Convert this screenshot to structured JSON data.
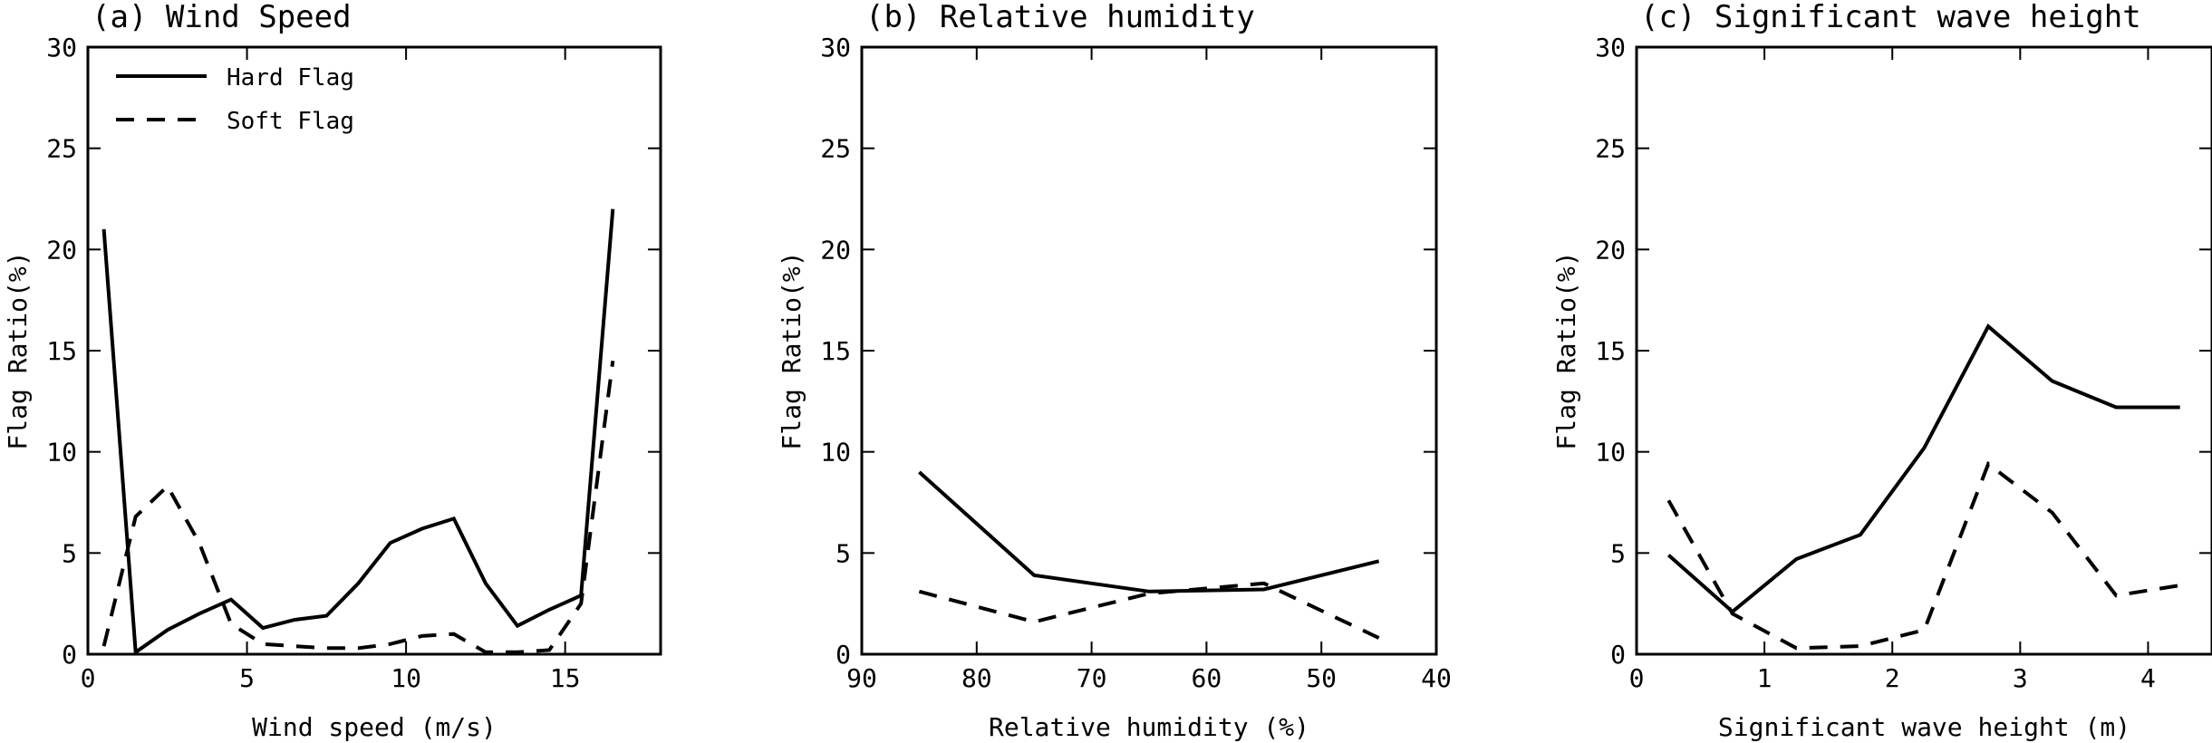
{
  "chart_data": [
    {
      "type": "line",
      "title": "(a) Wind Speed",
      "xlabel": "Wind speed (m/s)",
      "ylabel": "Flag Ratio(%)",
      "xlim": [
        0,
        18
      ],
      "ylim": [
        0,
        30
      ],
      "xticks": [
        0,
        5,
        10,
        15
      ],
      "yticks": [
        0,
        5,
        10,
        15,
        20,
        25,
        30
      ],
      "legend": {
        "position": "top-left",
        "entries": [
          "Hard Flag",
          "Soft Flag"
        ]
      },
      "series": [
        {
          "name": "Hard Flag",
          "style": "solid",
          "x": [
            0.5,
            1.5,
            2.5,
            3.5,
            4.5,
            5.5,
            6.5,
            7.5,
            8.5,
            9.5,
            10.5,
            11.5,
            12.5,
            13.5,
            14.5,
            15.5,
            16.5
          ],
          "y": [
            21,
            0.1,
            1.2,
            2.0,
            2.7,
            1.3,
            1.7,
            1.9,
            3.5,
            5.5,
            6.2,
            6.7,
            3.5,
            1.4,
            2.2,
            2.9,
            22
          ]
        },
        {
          "name": "Soft Flag",
          "style": "dashed",
          "x": [
            0.5,
            1.5,
            2.5,
            3.5,
            4.5,
            5.5,
            6.5,
            7.5,
            8.5,
            9.5,
            10.5,
            11.5,
            12.5,
            13.5,
            14.5,
            15.5,
            16.5
          ],
          "y": [
            0.4,
            6.8,
            8.3,
            5.5,
            1.5,
            0.5,
            0.4,
            0.3,
            0.3,
            0.5,
            0.9,
            1.0,
            0.1,
            0.1,
            0.2,
            2.5,
            14.5
          ]
        }
      ]
    },
    {
      "type": "line",
      "title": "(b) Relative humidity",
      "xlabel": "Relative humidity (%)",
      "ylabel": "Flag Ratio(%)",
      "xlim": [
        90,
        40
      ],
      "ylim": [
        0,
        30
      ],
      "xticks": [
        90,
        80,
        70,
        60,
        50,
        40
      ],
      "yticks": [
        0,
        5,
        10,
        15,
        20,
        25,
        30
      ],
      "series": [
        {
          "name": "Hard Flag",
          "style": "solid",
          "x": [
            85,
            75,
            65,
            55,
            45
          ],
          "y": [
            9.0,
            3.9,
            3.1,
            3.2,
            4.6
          ]
        },
        {
          "name": "Soft Flag",
          "style": "dashed",
          "x": [
            85,
            75,
            65,
            55,
            45
          ],
          "y": [
            3.1,
            1.6,
            3.0,
            3.5,
            0.8
          ]
        }
      ]
    },
    {
      "type": "line",
      "title": "(c) Significant wave height",
      "xlabel": "Significant wave height (m)",
      "ylabel": "Flag Ratio(%)",
      "xlim": [
        0,
        4.5
      ],
      "ylim": [
        0,
        30
      ],
      "xticks": [
        0,
        1,
        2,
        3,
        4
      ],
      "yticks": [
        0,
        5,
        10,
        15,
        20,
        25,
        30
      ],
      "series": [
        {
          "name": "Hard Flag",
          "style": "solid",
          "x": [
            0.25,
            0.75,
            1.25,
            1.75,
            2.25,
            2.75,
            3.25,
            3.75,
            4.25
          ],
          "y": [
            4.9,
            2.1,
            4.7,
            5.9,
            10.2,
            16.2,
            13.5,
            12.2,
            12.2
          ]
        },
        {
          "name": "Soft Flag",
          "style": "dashed",
          "x": [
            0.25,
            0.75,
            1.25,
            1.75,
            2.25,
            2.75,
            3.25,
            3.75,
            4.25
          ],
          "y": [
            7.6,
            2.0,
            0.3,
            0.4,
            1.2,
            9.4,
            7.0,
            2.9,
            3.4
          ]
        }
      ]
    }
  ]
}
